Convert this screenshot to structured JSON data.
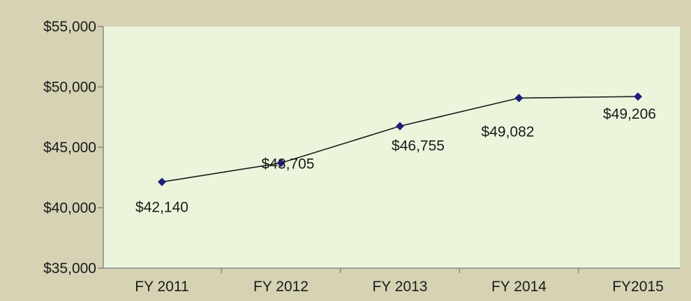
{
  "chart_data": {
    "type": "line",
    "title": "",
    "xlabel": "",
    "ylabel": "",
    "categories": [
      "FY 2011",
      "FY 2012",
      "FY 2013",
      "FY 2014",
      "FY2015"
    ],
    "series": [
      {
        "values": [
          42140,
          43705,
          46755,
          49082,
          49206
        ],
        "labels": [
          "$42,140",
          "$43,705",
          "$46,755",
          "$49,082",
          "$49,206"
        ],
        "color": "#1f1f7a"
      }
    ],
    "ylim": [
      35000,
      55000
    ],
    "yticks": [
      35000,
      40000,
      45000,
      50000,
      55000
    ],
    "ytick_labels": [
      "$35,000",
      "$40,000",
      "$45,000",
      "$50,000",
      "$55,000"
    ],
    "grid": false,
    "legend": "none",
    "colors": {
      "background": "#d6d2b4",
      "plot_area": "#eaf5dc",
      "axis": "#888888",
      "line": "#1a1a1a",
      "marker": "#1f1f7a"
    }
  }
}
